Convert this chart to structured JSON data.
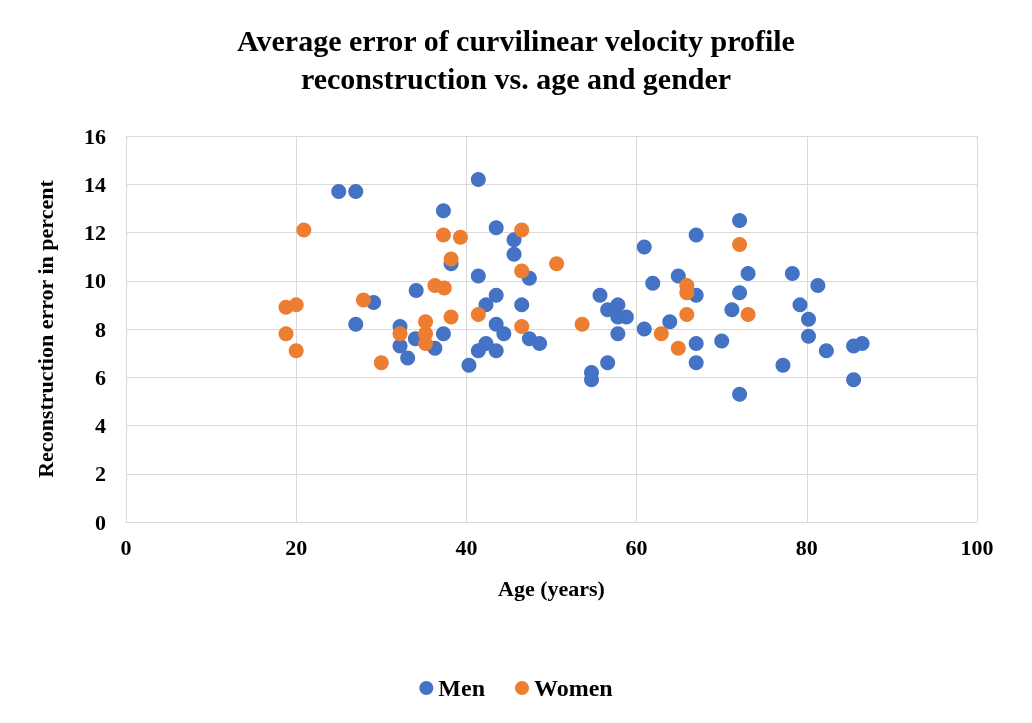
{
  "chart_data": {
    "type": "scatter",
    "title": "Average error of curvilinear velocity profile\nreconstruction vs. age and gender",
    "xlabel": "Age (years)",
    "ylabel": "Reconstruction error in percent",
    "xlim": [
      0,
      100
    ],
    "xticks": [
      0,
      20,
      40,
      60,
      80,
      100
    ],
    "ylim": [
      0,
      16
    ],
    "yticks": [
      0,
      2,
      4,
      6,
      8,
      10,
      12,
      14,
      16
    ],
    "grid": true,
    "legend": "bottom",
    "marker": "circle",
    "series": [
      {
        "name": "Men",
        "color": "#4472c4",
        "x": [
          25,
          27,
          27,
          29.1,
          37.3,
          34.1,
          32.2,
          32.2,
          33.1,
          34,
          36.3,
          37.3,
          40.3,
          41.4,
          41.4,
          41.4,
          42.3,
          43.5,
          45.6,
          45.6,
          47.4,
          43.5,
          42.3,
          43.5,
          44.4,
          43.5,
          46.5,
          47.4,
          48.6,
          54.7,
          54.7,
          56.6,
          55.7,
          56.6,
          57.8,
          57.8,
          58.8,
          57.8,
          60.9,
          60.9,
          61.9,
          63.9,
          64.9,
          67,
          67,
          67,
          67,
          72.1,
          73.1,
          78.3,
          81.3,
          72.1,
          71.2,
          79.2,
          80.2,
          80.2,
          70,
          82.3,
          85.5,
          86.5,
          77.2,
          85.5,
          72.1,
          38.2
        ],
        "values": [
          13.7,
          13.7,
          8.2,
          9.1,
          12.9,
          9.6,
          8.1,
          7.3,
          6.8,
          7.6,
          7.2,
          7.8,
          6.5,
          14.2,
          10.2,
          7.1,
          7.4,
          12.2,
          11.7,
          11.1,
          10.1,
          9.4,
          9,
          8.2,
          7.8,
          7.1,
          9,
          7.6,
          7.4,
          6.2,
          5.9,
          6.6,
          9.4,
          8.8,
          9,
          8.5,
          8.5,
          7.8,
          11.4,
          8,
          9.9,
          8.3,
          10.2,
          11.9,
          9.4,
          7.4,
          6.6,
          12.5,
          10.3,
          10.3,
          9.8,
          9.5,
          8.8,
          9,
          8.4,
          7.7,
          7.5,
          7.1,
          7.3,
          7.4,
          6.5,
          5.9,
          5.3,
          10.7
        ]
      },
      {
        "name": "Women",
        "color": "#ed7d31",
        "x": [
          20.9,
          18.8,
          20,
          18.8,
          20,
          27.9,
          30,
          32.2,
          35.2,
          35.2,
          35.2,
          36.3,
          37.4,
          37.3,
          39.3,
          38.2,
          38.2,
          41.4,
          46.5,
          46.5,
          50.6,
          46.5,
          53.6,
          62.9,
          64.9,
          65.9,
          65.9,
          65.9,
          72.1,
          73.1
        ],
        "values": [
          12.1,
          8.9,
          9,
          7.8,
          7.1,
          9.2,
          6.6,
          7.8,
          8.3,
          7.8,
          7.4,
          9.8,
          9.7,
          11.9,
          11.8,
          10.9,
          8.5,
          8.6,
          12.1,
          10.4,
          10.7,
          8.1,
          8.2,
          7.8,
          7.2,
          9.8,
          9.5,
          8.6,
          11.5,
          8.6
        ]
      }
    ]
  }
}
